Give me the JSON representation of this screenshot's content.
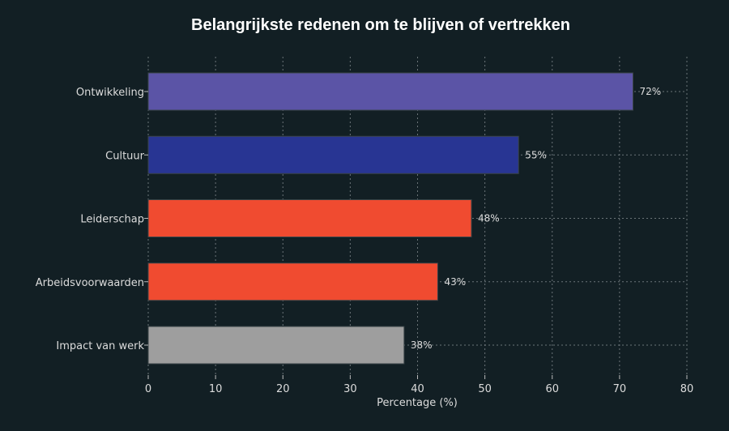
{
  "chart_data": {
    "type": "bar",
    "orientation": "horizontal",
    "title": "Belangrijkste redenen om te blijven of vertrekken",
    "xlabel": "Percentage (%)",
    "ylabel": "",
    "xlim": [
      0,
      80
    ],
    "xticks": [
      0,
      10,
      20,
      30,
      40,
      50,
      60,
      70,
      80
    ],
    "grid": true,
    "categories": [
      "Ontwikkeling",
      "Cultuur",
      "Leiderschap",
      "Arbeidsvoorwaarden",
      "Impact van werk"
    ],
    "values": [
      72,
      55,
      48,
      43,
      38
    ],
    "data_labels": [
      "72%",
      "55%",
      "48%",
      "43%",
      "38%"
    ],
    "colors": [
      "#5b54a6",
      "#283593",
      "#f04b30",
      "#f04b30",
      "#9e9e9e"
    ],
    "background": "#121f24"
  }
}
